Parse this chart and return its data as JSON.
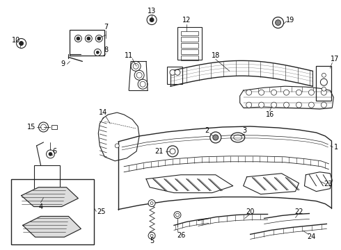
{
  "bg_color": "#ffffff",
  "line_color": "#222222",
  "figsize": [
    4.9,
    3.6
  ],
  "dpi": 100
}
